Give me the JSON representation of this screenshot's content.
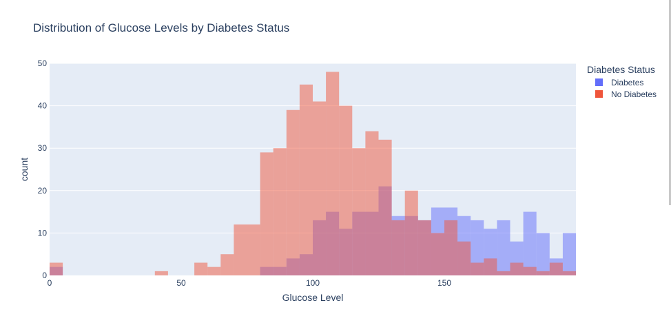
{
  "chart_data": {
    "type": "histogram",
    "title": "Distribution of Glucose Levels by Diabetes Status",
    "xlabel": "Glucose Level",
    "ylabel": "count",
    "xlim": [
      0,
      200
    ],
    "ylim": [
      0,
      50
    ],
    "xticks": [
      0,
      50,
      100,
      150
    ],
    "yticks": [
      0,
      10,
      20,
      30,
      40,
      50
    ],
    "bin_width": 5,
    "bin_starts": [
      0,
      5,
      10,
      15,
      20,
      25,
      30,
      35,
      40,
      45,
      50,
      55,
      60,
      65,
      70,
      75,
      80,
      85,
      90,
      95,
      100,
      105,
      110,
      115,
      120,
      125,
      130,
      135,
      140,
      145,
      150,
      155,
      160,
      165,
      170,
      175,
      180,
      185,
      190,
      195
    ],
    "barmode": "overlay",
    "opacity": 0.5,
    "grid": true,
    "legend": {
      "title": "Diabetes Status",
      "position": "right"
    },
    "series": [
      {
        "name": "Diabetes",
        "color": "#636efa",
        "values": [
          2,
          0,
          0,
          0,
          0,
          0,
          0,
          0,
          0,
          0,
          0,
          0,
          0,
          0,
          0,
          0,
          2,
          2,
          4,
          5,
          13,
          15,
          11,
          15,
          15,
          21,
          14,
          14,
          13,
          16,
          16,
          14,
          13,
          11,
          13,
          8,
          15,
          10,
          4,
          10
        ]
      },
      {
        "name": "No Diabetes",
        "color": "#ef553b",
        "values": [
          3,
          0,
          0,
          0,
          0,
          0,
          0,
          0,
          1,
          0,
          0,
          3,
          2,
          5,
          12,
          12,
          29,
          30,
          39,
          45,
          41,
          48,
          40,
          30,
          34,
          32,
          13,
          20,
          13,
          10,
          13,
          8,
          3,
          4,
          1,
          3,
          2,
          1,
          3,
          1
        ]
      }
    ]
  }
}
